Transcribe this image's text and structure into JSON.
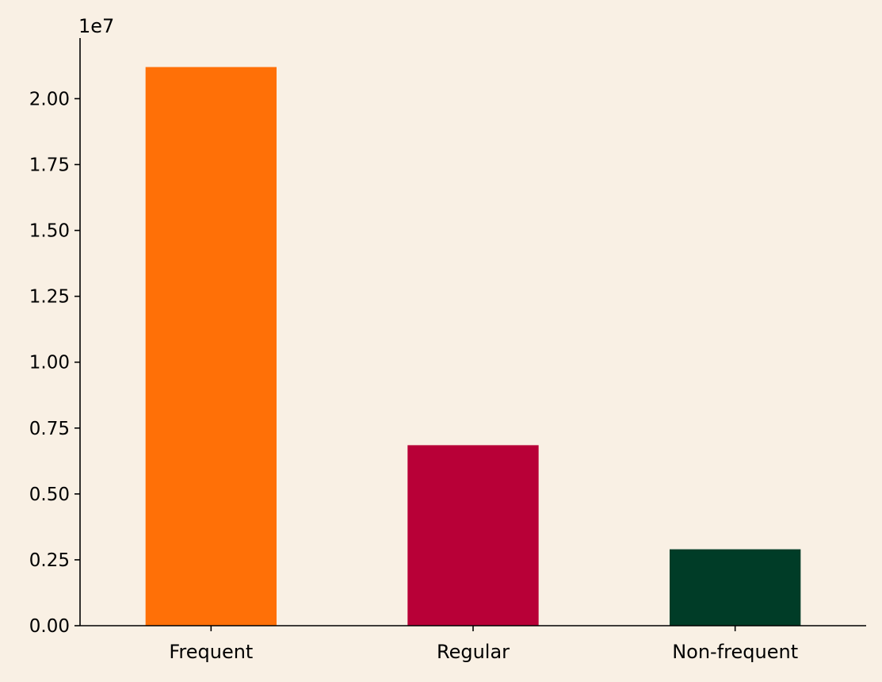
{
  "chart_data": {
    "type": "bar",
    "categories": [
      "Frequent",
      "Regular",
      "Non-frequent"
    ],
    "values": [
      21200000,
      6850000,
      2900000
    ],
    "colors": [
      "#FF7007",
      "#B80037",
      "#003C27"
    ],
    "background_color": "#F9F0E4",
    "title": "",
    "xlabel": "",
    "ylabel": "",
    "ylim": [
      0,
      22300000
    ],
    "y_ticks": [
      0,
      2500000,
      5000000,
      7500000,
      10000000,
      12500000,
      15000000,
      17500000,
      20000000
    ],
    "y_tick_labels": [
      "0.00",
      "0.25",
      "0.50",
      "0.75",
      "1.00",
      "1.25",
      "1.50",
      "1.75",
      "2.00"
    ],
    "y_offset_label": "1e7",
    "grid": false,
    "legend": "none"
  }
}
